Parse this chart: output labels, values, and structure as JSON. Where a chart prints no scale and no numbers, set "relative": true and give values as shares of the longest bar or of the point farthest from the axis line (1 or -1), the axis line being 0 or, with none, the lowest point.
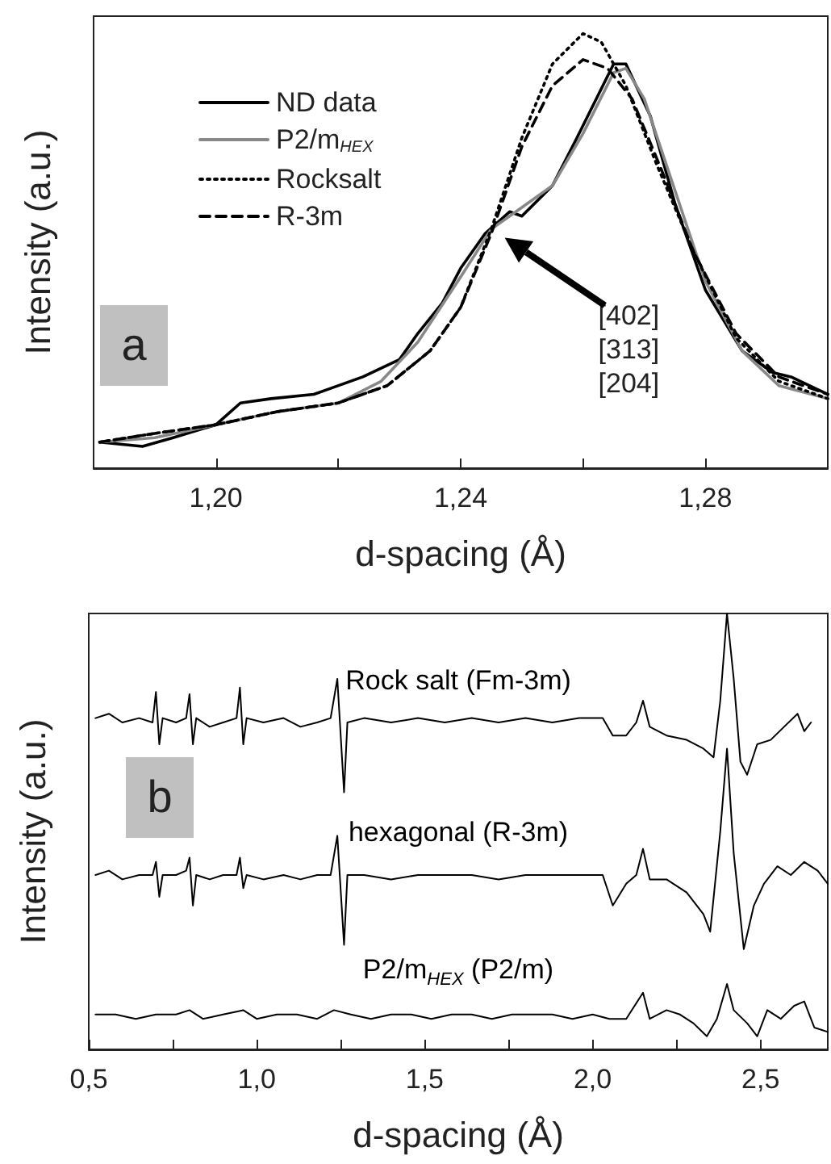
{
  "chart_data": [
    {
      "type": "line",
      "xlabel": "d-spacing (Å)",
      "ylabel": "Intensity (a.u.)",
      "relative": true,
      "tick_labels": "x",
      "legend": "top left",
      "xlim": [
        1.18,
        1.3
      ],
      "xticks": [
        {
          "value": 1.2,
          "label": "1,20"
        },
        {
          "value": 1.22,
          "label": null
        },
        {
          "value": 1.24,
          "label": "1,24"
        },
        {
          "value": 1.26,
          "label": null
        },
        {
          "value": 1.28,
          "label": "1,28"
        }
      ],
      "annotations": [
        "a",
        "[402]\n[313]\n[204]"
      ],
      "series": [
        {
          "name": "ND data",
          "color": "#000000",
          "line_style": "solid",
          "x": [
            1.181,
            1.188,
            1.193,
            1.2,
            1.204,
            1.209,
            1.216,
            1.218,
            1.224,
            1.23,
            1.233,
            1.237,
            1.24,
            1.244,
            1.248,
            1.25,
            1.255,
            1.259,
            1.265,
            1.267,
            1.271,
            1.275,
            1.28,
            1.286,
            1.291,
            1.294,
            1.3
          ],
          "values": [
            0.06,
            0.05,
            0.07,
            0.1,
            0.15,
            0.16,
            0.17,
            0.18,
            0.21,
            0.25,
            0.31,
            0.38,
            0.46,
            0.54,
            0.59,
            0.58,
            0.65,
            0.76,
            0.93,
            0.93,
            0.81,
            0.61,
            0.41,
            0.27,
            0.22,
            0.21,
            0.17
          ]
        },
        {
          "name": "P2/m$_{HEX}$",
          "color": "#888888",
          "line_style": "solid",
          "x": [
            1.181,
            1.19,
            1.2,
            1.21,
            1.22,
            1.227,
            1.233,
            1.24,
            1.245,
            1.25,
            1.255,
            1.26,
            1.265,
            1.267,
            1.27,
            1.275,
            1.28,
            1.286,
            1.292,
            1.3
          ],
          "values": [
            0.06,
            0.07,
            0.1,
            0.13,
            0.15,
            0.2,
            0.29,
            0.44,
            0.55,
            0.6,
            0.65,
            0.77,
            0.91,
            0.92,
            0.85,
            0.64,
            0.43,
            0.27,
            0.19,
            0.16
          ]
        },
        {
          "name": "Rocksalt",
          "color": "#000000",
          "line_style": "dotted",
          "x": [
            1.181,
            1.19,
            1.2,
            1.21,
            1.22,
            1.228,
            1.235,
            1.24,
            1.245,
            1.25,
            1.255,
            1.26,
            1.263,
            1.267,
            1.272,
            1.278,
            1.285,
            1.292,
            1.3
          ],
          "values": [
            0.06,
            0.08,
            0.1,
            0.13,
            0.15,
            0.19,
            0.27,
            0.37,
            0.55,
            0.76,
            0.93,
            1.0,
            0.98,
            0.88,
            0.7,
            0.5,
            0.3,
            0.2,
            0.16
          ]
        },
        {
          "name": "R-3m",
          "color": "#000000",
          "line_style": "dashed",
          "x": [
            1.181,
            1.19,
            1.2,
            1.21,
            1.22,
            1.228,
            1.235,
            1.24,
            1.245,
            1.25,
            1.255,
            1.26,
            1.264,
            1.268,
            1.273,
            1.278,
            1.285,
            1.292,
            1.3
          ],
          "values": [
            0.06,
            0.08,
            0.1,
            0.13,
            0.15,
            0.19,
            0.27,
            0.37,
            0.54,
            0.74,
            0.88,
            0.94,
            0.92,
            0.85,
            0.68,
            0.5,
            0.31,
            0.21,
            0.17
          ]
        }
      ]
    },
    {
      "type": "line",
      "xlabel": "d-spacing (Å)",
      "ylabel": "Intensity (a.u.)",
      "relative": true,
      "tick_labels": "x",
      "xlim": [
        0.5,
        2.7
      ],
      "xticks": [
        {
          "value": 0.5,
          "label": "0,5"
        },
        {
          "value": 0.75,
          "label": null
        },
        {
          "value": 1.0,
          "label": "1,0"
        },
        {
          "value": 1.25,
          "label": null
        },
        {
          "value": 1.5,
          "label": "1,5"
        },
        {
          "value": 1.75,
          "label": null
        },
        {
          "value": 2.0,
          "label": "2,0"
        },
        {
          "value": 2.25,
          "label": null
        },
        {
          "value": 2.5,
          "label": "2,5"
        }
      ],
      "annotations": [
        "b"
      ],
      "series": [
        {
          "name": "Rock salt (Fm-3m)",
          "color": "#000000",
          "x": [
            0.52,
            0.56,
            0.6,
            0.65,
            0.69,
            0.7,
            0.71,
            0.72,
            0.76,
            0.79,
            0.8,
            0.81,
            0.82,
            0.86,
            0.9,
            0.94,
            0.95,
            0.96,
            0.97,
            1.02,
            1.08,
            1.13,
            1.18,
            1.22,
            1.24,
            1.26,
            1.27,
            1.32,
            1.4,
            1.48,
            1.56,
            1.64,
            1.72,
            1.8,
            1.88,
            1.96,
            2.03,
            2.06,
            2.1,
            2.13,
            2.15,
            2.17,
            2.22,
            2.28,
            2.33,
            2.36,
            2.38,
            2.4,
            2.42,
            2.44,
            2.46,
            2.49,
            2.53,
            2.57,
            2.61,
            2.63,
            2.65
          ],
          "values": [
            0.76,
            0.77,
            0.75,
            0.76,
            0.75,
            0.82,
            0.7,
            0.76,
            0.75,
            0.76,
            0.815,
            0.7,
            0.76,
            0.74,
            0.75,
            0.76,
            0.83,
            0.7,
            0.76,
            0.75,
            0.76,
            0.74,
            0.75,
            0.76,
            0.85,
            0.59,
            0.75,
            0.76,
            0.75,
            0.76,
            0.75,
            0.76,
            0.75,
            0.76,
            0.75,
            0.76,
            0.76,
            0.72,
            0.72,
            0.75,
            0.8,
            0.74,
            0.72,
            0.71,
            0.69,
            0.67,
            0.8,
            1.0,
            0.85,
            0.66,
            0.63,
            0.7,
            0.71,
            0.74,
            0.77,
            0.73,
            0.75
          ]
        },
        {
          "name": "hexagonal (R-3m)",
          "color": "#000000",
          "x": [
            0.52,
            0.56,
            0.6,
            0.65,
            0.69,
            0.7,
            0.71,
            0.72,
            0.76,
            0.79,
            0.8,
            0.81,
            0.82,
            0.86,
            0.9,
            0.94,
            0.95,
            0.96,
            0.97,
            1.02,
            1.08,
            1.13,
            1.18,
            1.22,
            1.24,
            1.26,
            1.27,
            1.32,
            1.4,
            1.48,
            1.56,
            1.64,
            1.72,
            1.8,
            1.88,
            1.96,
            2.03,
            2.06,
            2.1,
            2.13,
            2.15,
            2.17,
            2.22,
            2.28,
            2.33,
            2.35,
            2.38,
            2.4,
            2.42,
            2.45,
            2.48,
            2.51,
            2.55,
            2.59,
            2.63,
            2.67,
            2.7
          ],
          "values": [
            0.4,
            0.41,
            0.39,
            0.4,
            0.4,
            0.43,
            0.35,
            0.4,
            0.4,
            0.41,
            0.44,
            0.33,
            0.4,
            0.39,
            0.4,
            0.4,
            0.44,
            0.37,
            0.4,
            0.39,
            0.4,
            0.39,
            0.4,
            0.4,
            0.49,
            0.24,
            0.4,
            0.4,
            0.39,
            0.4,
            0.4,
            0.4,
            0.39,
            0.4,
            0.4,
            0.4,
            0.4,
            0.33,
            0.38,
            0.4,
            0.46,
            0.39,
            0.39,
            0.36,
            0.31,
            0.27,
            0.5,
            0.69,
            0.45,
            0.23,
            0.33,
            0.38,
            0.42,
            0.4,
            0.43,
            0.41,
            0.38
          ]
        },
        {
          "name": "P2/m$_{HEX}$ (P2/m)",
          "color": "#000000",
          "x": [
            0.52,
            0.58,
            0.64,
            0.7,
            0.76,
            0.8,
            0.84,
            0.9,
            0.96,
            1.0,
            1.06,
            1.12,
            1.18,
            1.23,
            1.28,
            1.34,
            1.4,
            1.46,
            1.52,
            1.58,
            1.64,
            1.7,
            1.76,
            1.82,
            1.88,
            1.94,
            2.0,
            2.05,
            2.1,
            2.15,
            2.17,
            2.22,
            2.26,
            2.3,
            2.34,
            2.37,
            2.4,
            2.42,
            2.46,
            2.49,
            2.52,
            2.56,
            2.6,
            2.63,
            2.66,
            2.7
          ],
          "values": [
            0.08,
            0.08,
            0.07,
            0.08,
            0.08,
            0.09,
            0.07,
            0.08,
            0.09,
            0.07,
            0.08,
            0.08,
            0.07,
            0.09,
            0.08,
            0.07,
            0.08,
            0.08,
            0.07,
            0.08,
            0.08,
            0.07,
            0.08,
            0.08,
            0.08,
            0.07,
            0.08,
            0.07,
            0.07,
            0.13,
            0.07,
            0.09,
            0.08,
            0.06,
            0.03,
            0.07,
            0.15,
            0.09,
            0.06,
            0.03,
            0.09,
            0.07,
            0.1,
            0.11,
            0.05,
            0.04
          ]
        }
      ]
    }
  ]
}
